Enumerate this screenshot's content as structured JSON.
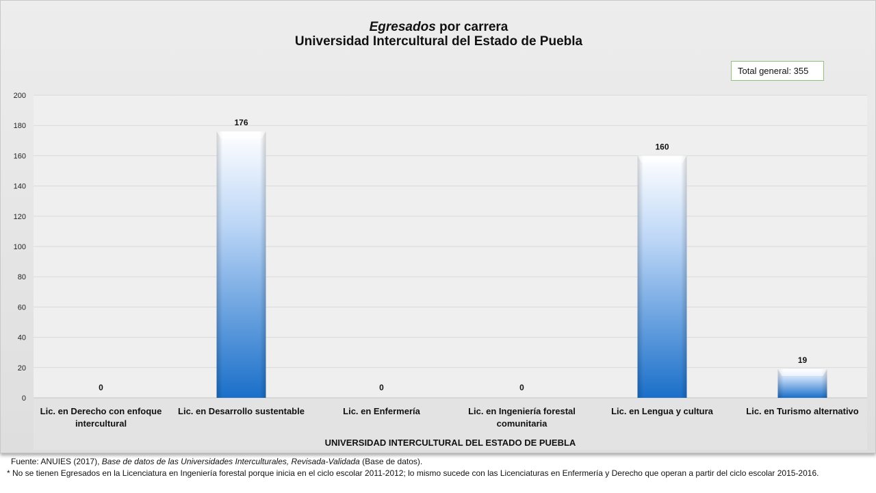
{
  "title": {
    "line1_italic": "Egresados",
    "line1_rest": " por carrera",
    "line2": "Universidad Intercultural del Estado de Puebla"
  },
  "total_label": "Total general: 355",
  "footer": {
    "source_prefix": "Fuente: ANUIES (2017), ",
    "source_italic": "Base de datos de las Universidades Interculturales, Revisada-Validada",
    "source_suffix": " (Base de datos).",
    "note": "* No se tienen Egresados en la Licenciatura en Ingeniería forestal porque inicia en el ciclo escolar 2011-2012; lo mismo sucede con las Licenciaturas en Enfermería y Derecho que operan a partir del ciclo escolar 2015-2016."
  },
  "chart_data": {
    "type": "bar",
    "categories": [
      "Lic. en Derecho con enfoque intercultural",
      "Lic. en Desarrollo sustentable",
      "Lic. en Enfermería",
      "Lic. en Ingeniería forestal comunitaria",
      "Lic. en Lengua y cultura",
      "Lic. en Turismo alternativo"
    ],
    "category_lines": [
      [
        "Lic. en Derecho con enfoque",
        "intercultural"
      ],
      [
        "Lic. en Desarrollo sustentable"
      ],
      [
        "Lic. en Enfermería"
      ],
      [
        "Lic. en Ingeniería forestal",
        "comunitaria"
      ],
      [
        "Lic. en Lengua y cultura"
      ],
      [
        "Lic. en Turismo alternativo"
      ]
    ],
    "values": [
      0,
      176,
      0,
      0,
      160,
      19
    ],
    "xlabel": "UNIVERSIDAD INTERCULTURAL DEL ESTADO DE PUEBLA",
    "ylabel": "",
    "ylim": [
      0,
      200
    ],
    "yticks": [
      0,
      20,
      40,
      60,
      80,
      100,
      120,
      140,
      160,
      180,
      200
    ],
    "grid": true,
    "data_labels": true,
    "colors": {
      "bar_dark": "#1a6fc9",
      "bar_light": "#ffffff",
      "plot_bg": "#efefef",
      "grid": "#d9d9d9"
    }
  }
}
